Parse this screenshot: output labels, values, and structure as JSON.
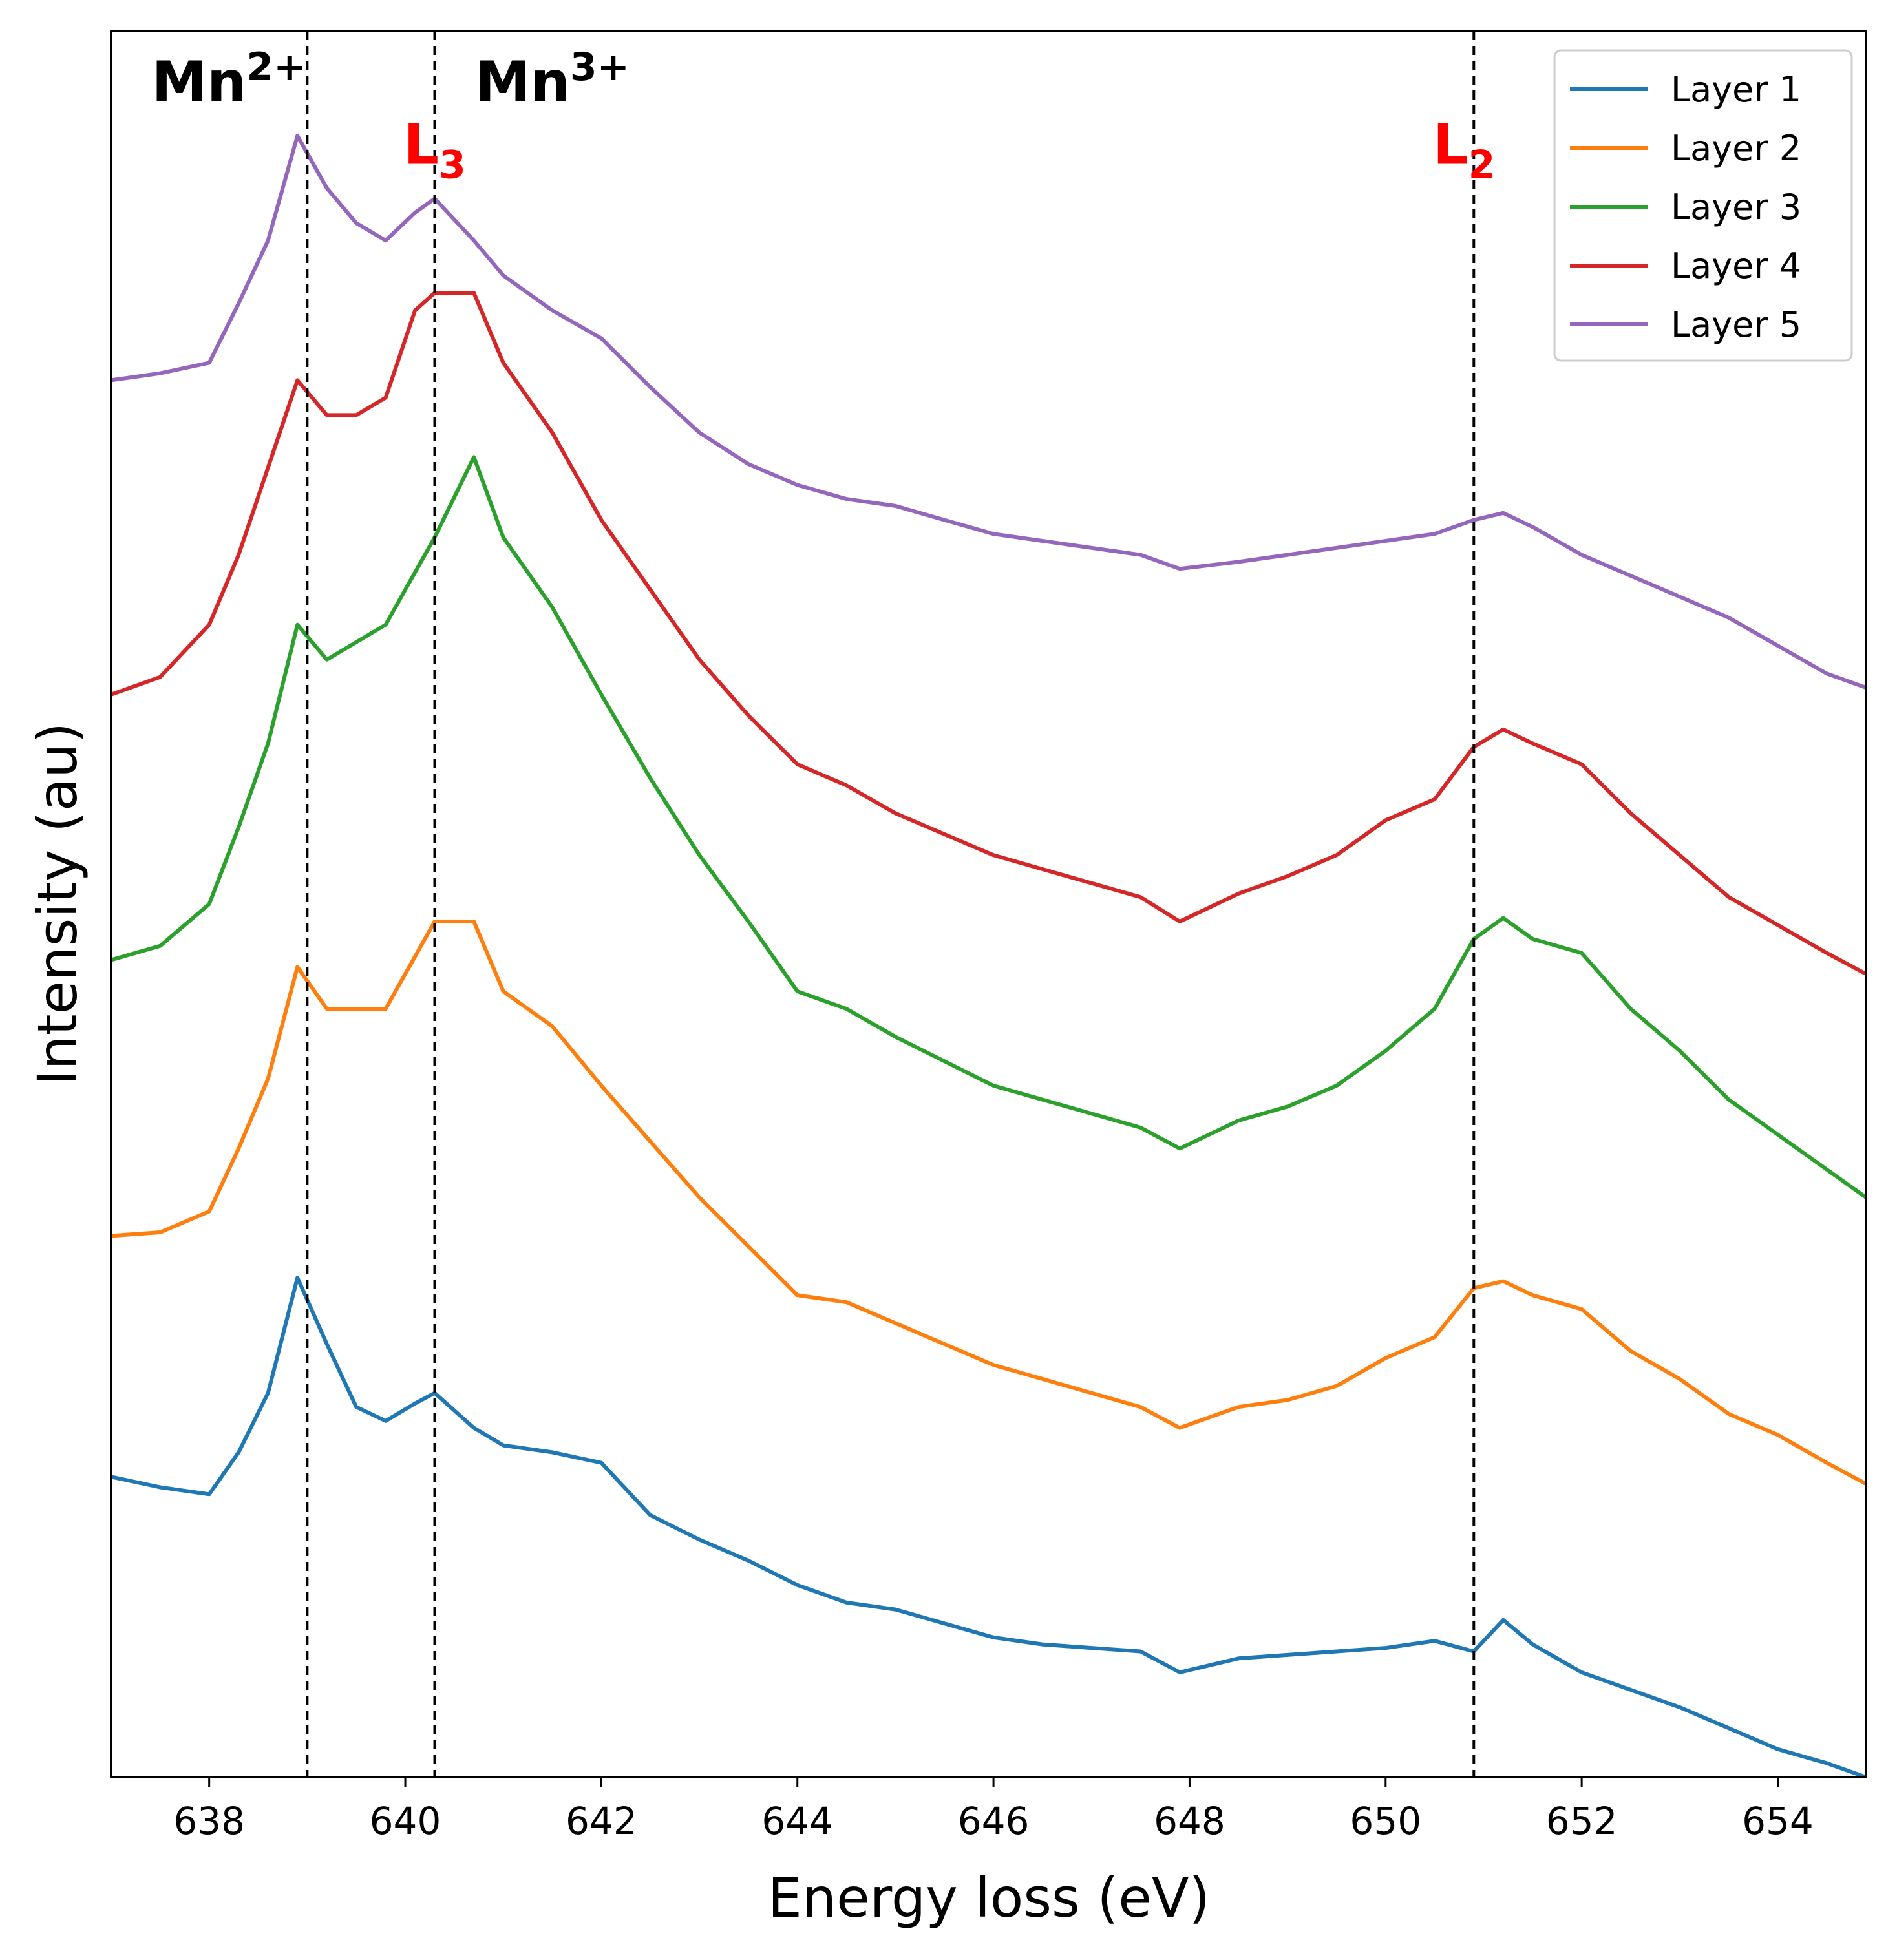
{
  "chart_data": {
    "type": "line",
    "xlabel": "Energy loss (eV)",
    "ylabel": "Intensity (au)",
    "xlim": [
      637.0,
      654.9
    ],
    "ylim": [
      0.0,
      5.0
    ],
    "xticks": [
      638,
      640,
      642,
      644,
      646,
      648,
      650,
      652,
      654
    ],
    "yticks_shown": false,
    "legend_position": "top-right",
    "vlines": [
      639.0,
      640.3,
      650.9
    ],
    "annotations": [
      {
        "base": "Mn",
        "script": "2+",
        "kind": "sup",
        "x": 638.2,
        "y": 4.8,
        "color": "#000000"
      },
      {
        "base": "Mn",
        "script": "3+",
        "kind": "sup",
        "x": 641.5,
        "y": 4.8,
        "color": "#000000"
      },
      {
        "base": "L",
        "script": "3",
        "kind": "sub",
        "x": 640.3,
        "y": 4.62,
        "color": "#ff0000"
      },
      {
        "base": "L",
        "script": "2",
        "kind": "sub",
        "x": 650.8,
        "y": 4.62,
        "color": "#ff0000"
      }
    ],
    "series": [
      {
        "name": "Layer 1",
        "color": "#1f77b4",
        "x": [
          637.0,
          637.5,
          638.0,
          638.3,
          638.6,
          638.9,
          639.2,
          639.5,
          639.8,
          640.1,
          640.3,
          640.7,
          641.0,
          641.5,
          642.0,
          642.5,
          643.0,
          643.5,
          644.0,
          644.5,
          645.0,
          645.5,
          646.0,
          646.5,
          647.0,
          647.5,
          647.9,
          648.5,
          649.0,
          649.5,
          650.0,
          650.5,
          650.9,
          651.2,
          651.5,
          652.0,
          652.5,
          653.0,
          653.5,
          654.0,
          654.5,
          654.9
        ],
        "values": [
          0.86,
          0.83,
          0.81,
          0.93,
          1.1,
          1.43,
          1.24,
          1.06,
          1.02,
          1.07,
          1.1,
          1.0,
          0.95,
          0.93,
          0.9,
          0.75,
          0.68,
          0.62,
          0.55,
          0.5,
          0.48,
          0.44,
          0.4,
          0.38,
          0.37,
          0.36,
          0.3,
          0.34,
          0.35,
          0.36,
          0.37,
          0.39,
          0.36,
          0.45,
          0.38,
          0.3,
          0.25,
          0.2,
          0.14,
          0.08,
          0.04,
          0.0
        ]
      },
      {
        "name": "Layer 2",
        "color": "#ff7f0e",
        "x": [
          637.0,
          637.5,
          638.0,
          638.3,
          638.6,
          638.9,
          639.2,
          639.5,
          639.8,
          640.1,
          640.3,
          640.7,
          641.0,
          641.5,
          642.0,
          642.5,
          643.0,
          643.5,
          644.0,
          644.5,
          645.0,
          645.5,
          646.0,
          646.5,
          647.0,
          647.5,
          647.9,
          648.5,
          649.0,
          649.5,
          650.0,
          650.5,
          650.9,
          651.2,
          651.5,
          652.0,
          652.5,
          653.0,
          653.5,
          654.0,
          654.5,
          654.9
        ],
        "values": [
          1.55,
          1.56,
          1.62,
          1.8,
          2.0,
          2.32,
          2.2,
          2.2,
          2.2,
          2.35,
          2.45,
          2.45,
          2.25,
          2.15,
          1.98,
          1.82,
          1.66,
          1.52,
          1.38,
          1.36,
          1.3,
          1.24,
          1.18,
          1.14,
          1.1,
          1.06,
          1.0,
          1.06,
          1.08,
          1.12,
          1.2,
          1.26,
          1.4,
          1.42,
          1.38,
          1.34,
          1.22,
          1.14,
          1.04,
          0.98,
          0.9,
          0.84
        ]
      },
      {
        "name": "Layer 3",
        "color": "#2ca02c",
        "x": [
          637.0,
          637.5,
          638.0,
          638.3,
          638.6,
          638.9,
          639.2,
          639.5,
          639.8,
          640.1,
          640.3,
          640.7,
          641.0,
          641.5,
          642.0,
          642.5,
          643.0,
          643.5,
          644.0,
          644.5,
          645.0,
          645.5,
          646.0,
          646.5,
          647.0,
          647.5,
          647.9,
          648.5,
          649.0,
          649.5,
          650.0,
          650.5,
          650.9,
          651.2,
          651.5,
          652.0,
          652.5,
          653.0,
          653.5,
          654.0,
          654.5,
          654.9
        ],
        "values": [
          2.34,
          2.38,
          2.5,
          2.72,
          2.96,
          3.3,
          3.2,
          3.25,
          3.3,
          3.45,
          3.55,
          3.78,
          3.55,
          3.35,
          3.1,
          2.86,
          2.64,
          2.45,
          2.25,
          2.2,
          2.12,
          2.05,
          1.98,
          1.94,
          1.9,
          1.86,
          1.8,
          1.88,
          1.92,
          1.98,
          2.08,
          2.2,
          2.4,
          2.46,
          2.4,
          2.36,
          2.2,
          2.08,
          1.94,
          1.84,
          1.74,
          1.66
        ]
      },
      {
        "name": "Layer 4",
        "color": "#d62728",
        "x": [
          637.0,
          637.5,
          638.0,
          638.3,
          638.6,
          638.9,
          639.2,
          639.5,
          639.8,
          640.1,
          640.3,
          640.7,
          641.0,
          641.5,
          642.0,
          642.5,
          643.0,
          643.5,
          644.0,
          644.5,
          645.0,
          645.5,
          646.0,
          646.5,
          647.0,
          647.5,
          647.9,
          648.5,
          649.0,
          649.5,
          650.0,
          650.5,
          650.9,
          651.2,
          651.5,
          652.0,
          652.5,
          653.0,
          653.5,
          654.0,
          654.5,
          654.9
        ],
        "values": [
          3.1,
          3.15,
          3.3,
          3.5,
          3.75,
          4.0,
          3.9,
          3.9,
          3.95,
          4.2,
          4.25,
          4.25,
          4.05,
          3.85,
          3.6,
          3.4,
          3.2,
          3.04,
          2.9,
          2.84,
          2.76,
          2.7,
          2.64,
          2.6,
          2.56,
          2.52,
          2.45,
          2.53,
          2.58,
          2.64,
          2.74,
          2.8,
          2.95,
          3.0,
          2.96,
          2.9,
          2.76,
          2.64,
          2.52,
          2.44,
          2.36,
          2.3
        ]
      },
      {
        "name": "Layer 5",
        "color": "#9467bd",
        "x": [
          637.0,
          637.5,
          638.0,
          638.3,
          638.6,
          638.9,
          639.2,
          639.5,
          639.8,
          640.1,
          640.3,
          640.7,
          641.0,
          641.5,
          642.0,
          642.5,
          643.0,
          643.5,
          644.0,
          644.5,
          645.0,
          645.5,
          646.0,
          646.5,
          647.0,
          647.5,
          647.9,
          648.5,
          649.0,
          649.5,
          650.0,
          650.5,
          650.9,
          651.2,
          651.5,
          652.0,
          652.5,
          653.0,
          653.5,
          654.0,
          654.5,
          654.9
        ],
        "values": [
          4.0,
          4.02,
          4.05,
          4.22,
          4.4,
          4.7,
          4.55,
          4.45,
          4.4,
          4.48,
          4.52,
          4.4,
          4.3,
          4.2,
          4.12,
          3.98,
          3.85,
          3.76,
          3.7,
          3.66,
          3.64,
          3.6,
          3.56,
          3.54,
          3.52,
          3.5,
          3.46,
          3.48,
          3.5,
          3.52,
          3.54,
          3.56,
          3.6,
          3.62,
          3.58,
          3.5,
          3.44,
          3.38,
          3.32,
          3.24,
          3.16,
          3.12
        ]
      }
    ]
  }
}
